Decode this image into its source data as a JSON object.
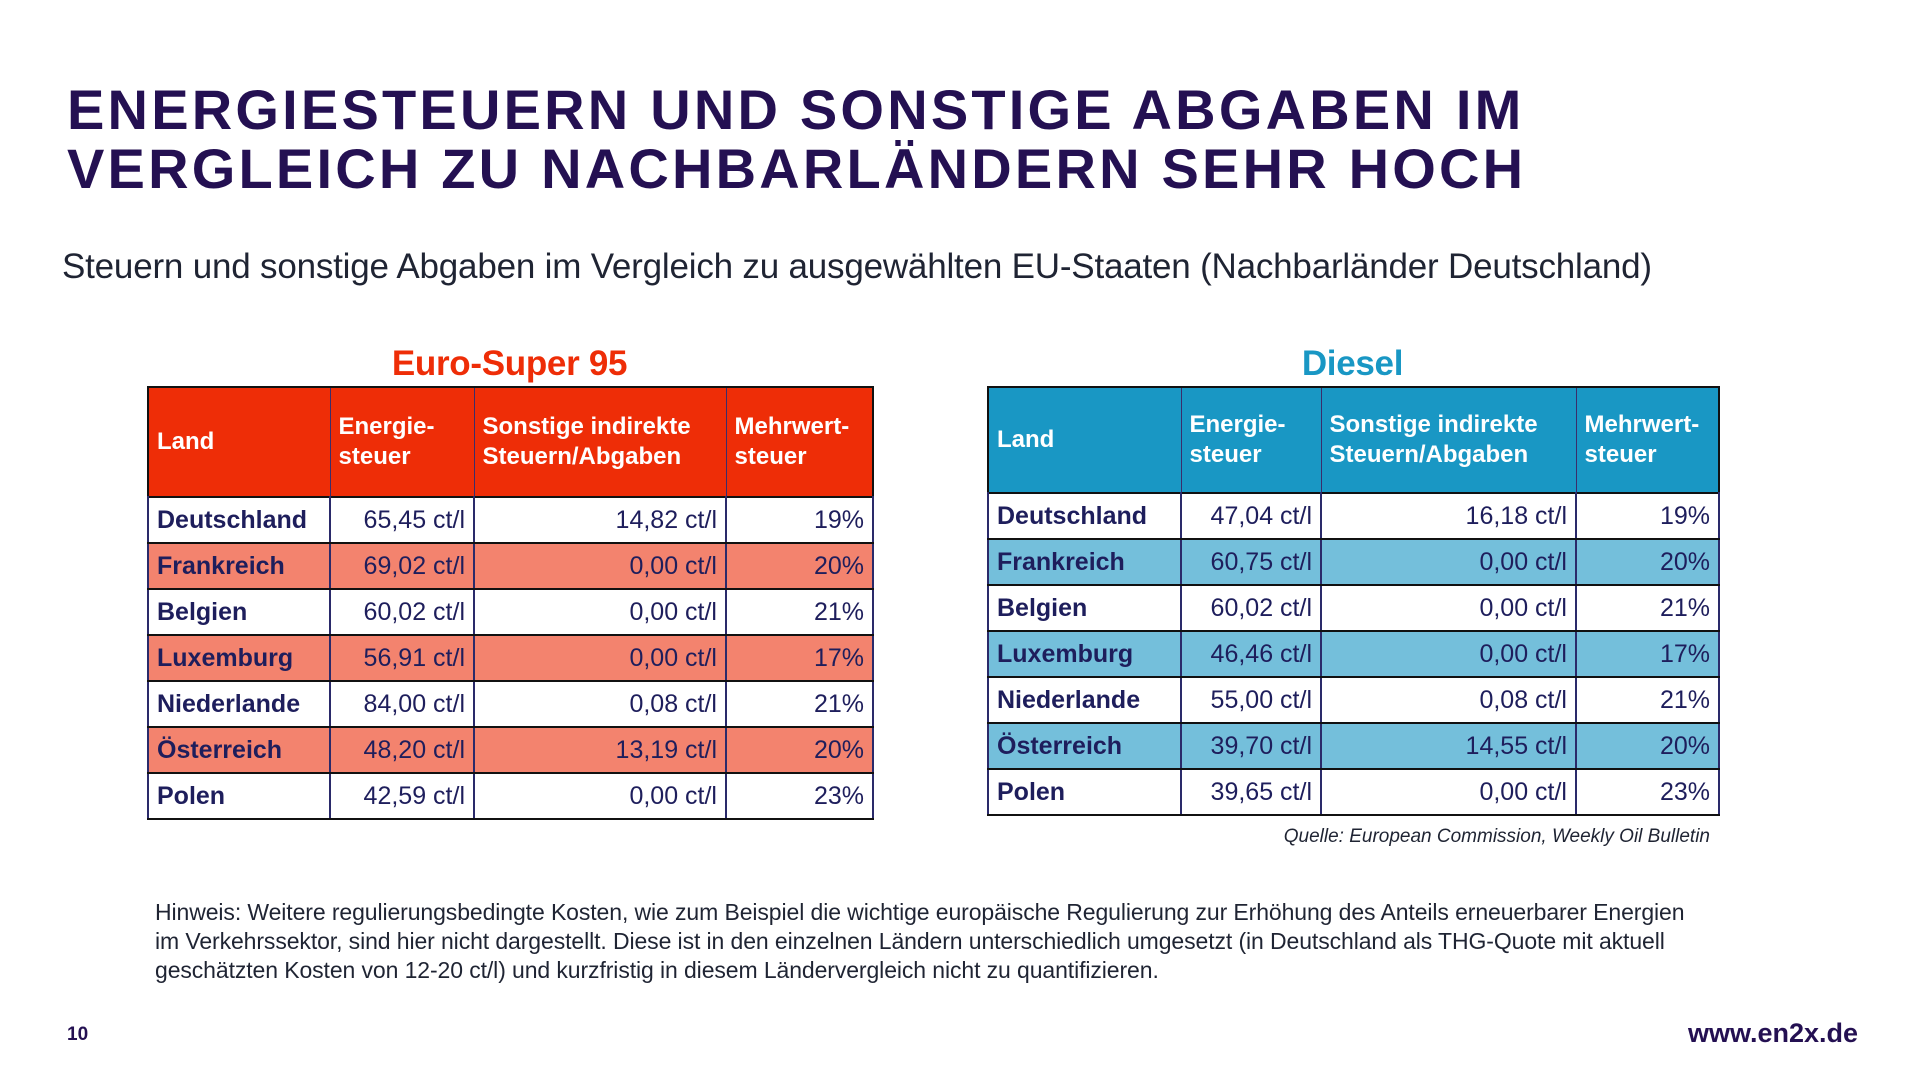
{
  "slide": {
    "title_lines": [
      "Energiesteuern und sonstige Abgaben im",
      "Vergleich zu Nachbarländern sehr hoch"
    ],
    "subtitle": "Steuern und sonstige Abgaben im Vergleich zu ausgewählten EU-Staaten (Nachbarländer Deutschland)",
    "page_number": "10",
    "url": "www.en2x.de",
    "source": "Quelle: European Commission, Weekly Oil Bulletin",
    "note": "Hinweis: Weitere regulierungsbedingte Kosten, wie zum Beispiel die wichtige europäische Regulierung zur Erhöhung des Anteils erneuerbarer Energien im Verkehrssektor, sind hier nicht dargestellt. Diese ist in den einzelnen Ländern unterschiedlich umgesetzt (in Deutschland als THG-Quote mit aktuell geschätzten Kosten von 12-20 ct/l) und kurzfristig in diesem Ländervergleich nicht zu quantifizieren."
  },
  "colors": {
    "title": "#241052",
    "super_header": "#ee2d07",
    "super_alt_row": "#f3836e",
    "diesel_header": "#1997c4",
    "diesel_alt_row": "#74bfdb",
    "cell_text": "#1e1e5c"
  },
  "tables": {
    "super": {
      "title": "Euro-Super 95",
      "headers": [
        "Land",
        "Energie-\nsteuer",
        "Sonstige indirekte Steuern/Abgaben",
        "Mehrwert-\nsteuer"
      ],
      "rows": [
        [
          "Deutschland",
          "65,45 ct/l",
          "14,82 ct/l",
          "19%"
        ],
        [
          "Frankreich",
          "69,02 ct/l",
          "0,00 ct/l",
          "20%"
        ],
        [
          "Belgien",
          "60,02 ct/l",
          "0,00 ct/l",
          "21%"
        ],
        [
          "Luxemburg",
          "56,91 ct/l",
          "0,00 ct/l",
          "17%"
        ],
        [
          "Niederlande",
          "84,00 ct/l",
          "0,08 ct/l",
          "21%"
        ],
        [
          "Österreich",
          "48,20 ct/l",
          "13,19 ct/l",
          "20%"
        ],
        [
          "Polen",
          "42,59 ct/l",
          "0,00 ct/l",
          "23%"
        ]
      ]
    },
    "diesel": {
      "title": "Diesel",
      "headers": [
        "Land",
        "Energie-\nsteuer",
        "Sonstige indirekte Steuern/Abgaben",
        "Mehrwert-\nsteuer"
      ],
      "rows": [
        [
          "Deutschland",
          "47,04 ct/l",
          "16,18 ct/l",
          "19%"
        ],
        [
          "Frankreich",
          "60,75 ct/l",
          "0,00 ct/l",
          "20%"
        ],
        [
          "Belgien",
          "60,02 ct/l",
          "0,00 ct/l",
          "21%"
        ],
        [
          "Luxemburg",
          "46,46 ct/l",
          "0,00 ct/l",
          "17%"
        ],
        [
          "Niederlande",
          "55,00 ct/l",
          "0,08 ct/l",
          "21%"
        ],
        [
          "Österreich",
          "39,70 ct/l",
          "14,55 ct/l",
          "20%"
        ],
        [
          "Polen",
          "39,65 ct/l",
          "0,00 ct/l",
          "23%"
        ]
      ]
    }
  }
}
